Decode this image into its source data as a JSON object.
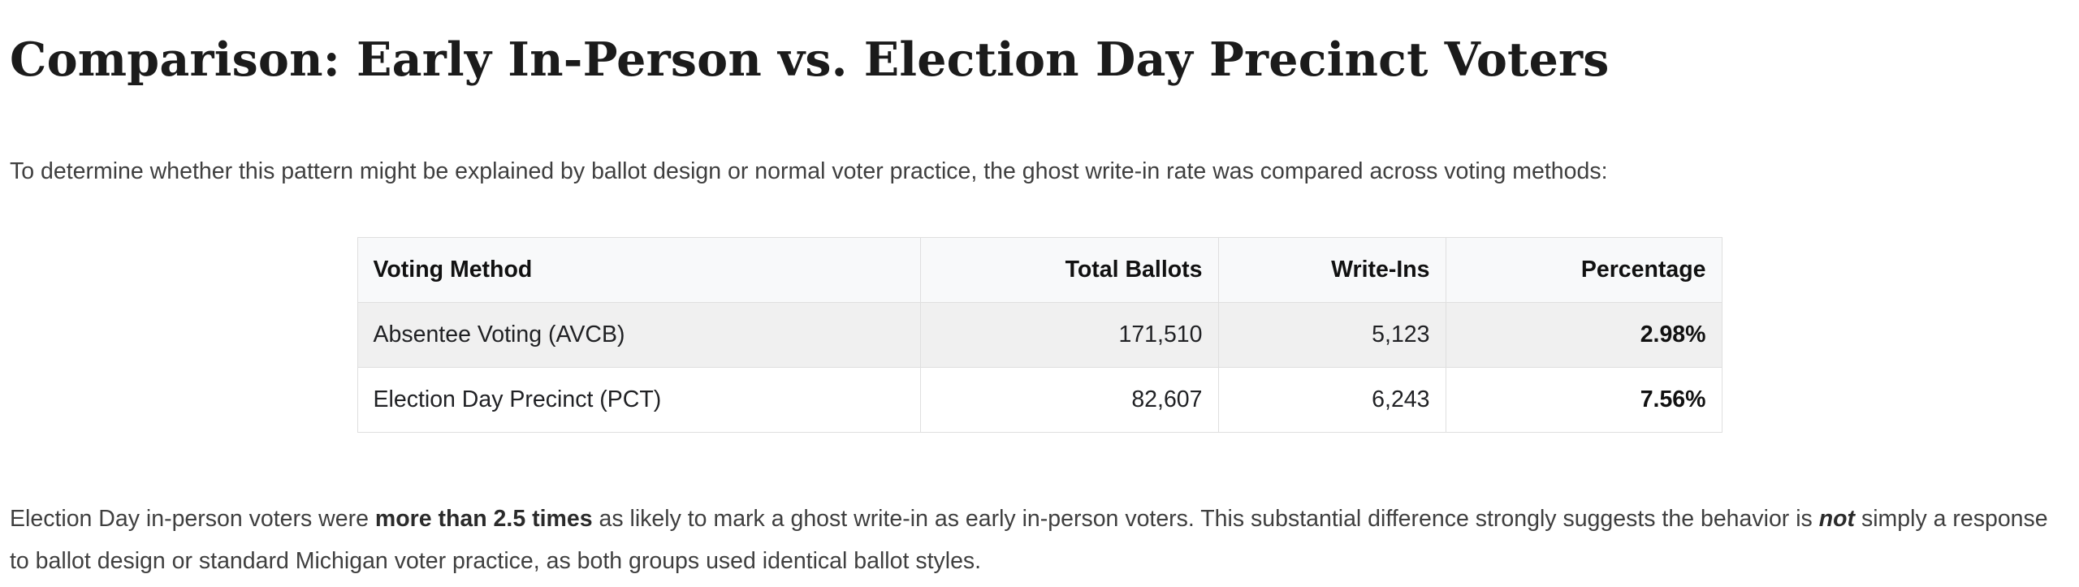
{
  "page": {
    "title": "Comparison: Early In-Person vs. Election Day Precinct Voters",
    "intro": "To determine whether this pattern might be explained by ballot design or normal voter practice, the ghost write-in rate was compared across voting methods:",
    "conclusion": {
      "part1": "Election Day in-person voters were ",
      "bold1": "more than 2.5 times",
      "part2": " as likely to mark a ghost write-in as early in-person voters. This substantial difference strongly suggests the behavior is ",
      "bold_italic": "not",
      "part3": " simply a response to ballot design or standard Michigan voter practice, as both groups used identical ballot styles."
    }
  },
  "table": {
    "headers": [
      "Voting Method",
      "Total Ballots",
      "Write-Ins",
      "Percentage"
    ],
    "rows": [
      {
        "method": "Absentee Voting (AVCB)",
        "total_ballots": "171,510",
        "write_ins": "5,123",
        "percentage": "2.98%"
      },
      {
        "method": "Election Day Precinct (PCT)",
        "total_ballots": "82,607",
        "write_ins": "6,243",
        "percentage": "7.56%"
      }
    ]
  },
  "colors": {
    "page_bg": "#ffffff",
    "heading_text": "#1b1b1b",
    "body_text": "#3f3f3f",
    "table_text": "#202124",
    "border": "#dfdfdf",
    "header_bg": "#f8f9fa",
    "row_alt_bg": "#f0f0f0"
  }
}
